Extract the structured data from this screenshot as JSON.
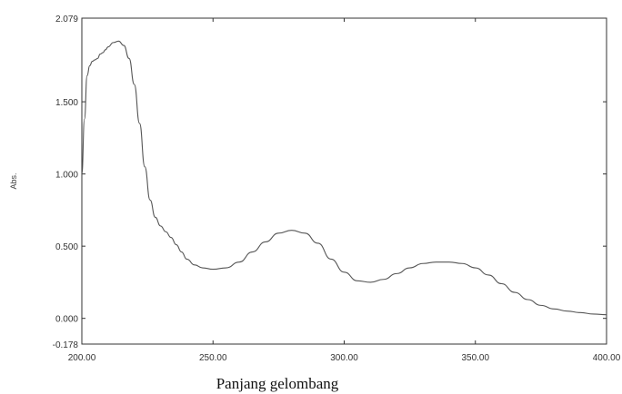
{
  "chart_data": {
    "type": "line",
    "title": "",
    "xlabel": "Panjang gelombang",
    "ylabel": "Abs.",
    "xlim": [
      200.0,
      400.0
    ],
    "ylim": [
      -0.178,
      2.079
    ],
    "x_ticks": [
      {
        "value": 200,
        "label": "200.00"
      },
      {
        "value": 250,
        "label": "250.00"
      },
      {
        "value": 300,
        "label": "300.00"
      },
      {
        "value": 350,
        "label": "350.00"
      },
      {
        "value": 400,
        "label": "400.00"
      }
    ],
    "y_ticks": [
      {
        "value": 2.079,
        "label": "2.079"
      },
      {
        "value": 1.5,
        "label": "1.500"
      },
      {
        "value": 1.0,
        "label": "1.000"
      },
      {
        "value": 0.5,
        "label": "0.500"
      },
      {
        "value": 0.0,
        "label": "0.000"
      },
      {
        "value": -0.178,
        "label": "-0.178"
      }
    ],
    "grid": false,
    "line_color": "#555555",
    "series": [
      {
        "x": [
          200,
          201,
          202,
          203,
          204,
          205,
          206,
          207,
          208,
          209,
          210,
          212,
          214,
          216,
          218,
          220,
          222,
          224,
          226,
          228,
          230,
          232,
          234,
          236,
          238,
          240,
          243,
          246,
          250,
          255,
          260,
          265,
          270,
          275,
          280,
          285,
          290,
          295,
          300,
          305,
          310,
          315,
          320,
          325,
          330,
          335,
          340,
          345,
          350,
          355,
          360,
          365,
          370,
          375,
          380,
          385,
          390,
          395,
          400
        ],
        "y": [
          1.0,
          1.38,
          1.68,
          1.75,
          1.78,
          1.79,
          1.8,
          1.83,
          1.84,
          1.86,
          1.88,
          1.91,
          1.92,
          1.89,
          1.8,
          1.62,
          1.35,
          1.05,
          0.82,
          0.7,
          0.64,
          0.6,
          0.56,
          0.51,
          0.46,
          0.41,
          0.37,
          0.35,
          0.34,
          0.35,
          0.39,
          0.46,
          0.53,
          0.59,
          0.61,
          0.59,
          0.52,
          0.41,
          0.32,
          0.26,
          0.25,
          0.27,
          0.31,
          0.35,
          0.38,
          0.39,
          0.39,
          0.38,
          0.35,
          0.3,
          0.24,
          0.18,
          0.13,
          0.09,
          0.065,
          0.05,
          0.04,
          0.03,
          0.025
        ]
      }
    ]
  }
}
